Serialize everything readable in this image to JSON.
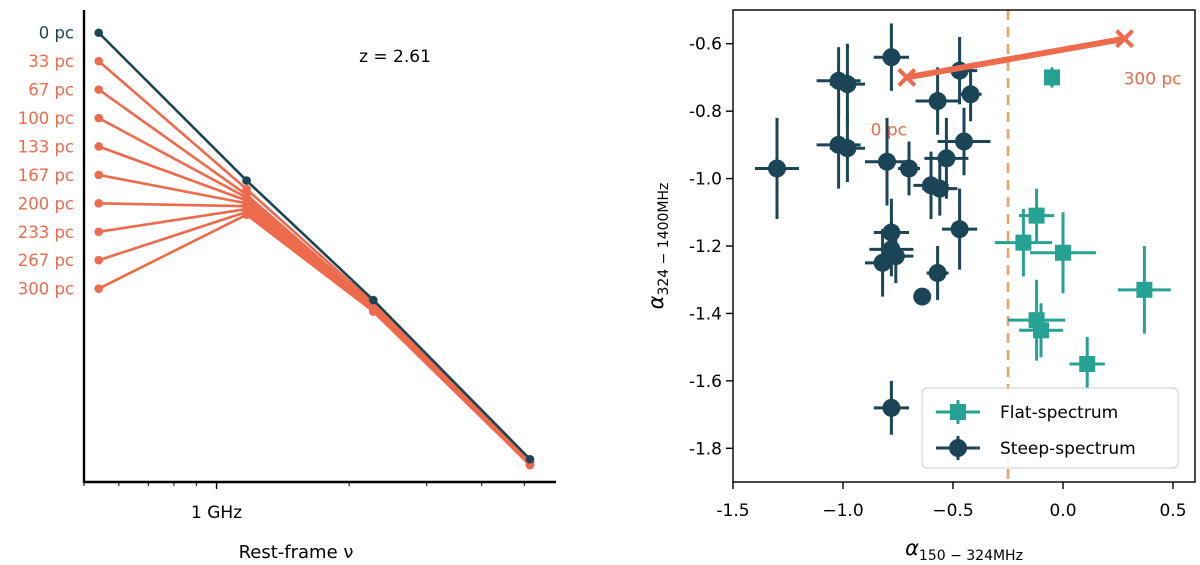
{
  "colors": {
    "dark": "#1b4556",
    "orange": "#ee6a4c",
    "teal": "#26a295",
    "vline": "#f0a060",
    "axis": "#000000"
  },
  "chart_data": [
    {
      "type": "line",
      "title": "",
      "xlabel": "Rest-frame ν",
      "ylabel": "",
      "xscale": "log",
      "x_ticks": [
        {
          "value": 1,
          "label": "1 GHz"
        }
      ],
      "annotation": "z = 2.61",
      "x": [
        0.54,
        1.17,
        2.27,
        5.15
      ],
      "series": [
        {
          "name": "0 pc",
          "color": "dark",
          "values": [
            0,
            -5.2,
            -9.4,
            -15.0
          ]
        },
        {
          "name": "33 pc",
          "color": "orange",
          "values": [
            -1.0,
            -5.5,
            -9.5,
            -15.0
          ]
        },
        {
          "name": "67 pc",
          "color": "orange",
          "values": [
            -2.0,
            -5.7,
            -9.6,
            -15.1
          ]
        },
        {
          "name": "100 pc",
          "color": "orange",
          "values": [
            -3.0,
            -5.8,
            -9.6,
            -15.1
          ]
        },
        {
          "name": "133 pc",
          "color": "orange",
          "values": [
            -4.0,
            -5.9,
            -9.7,
            -15.1
          ]
        },
        {
          "name": "167 pc",
          "color": "orange",
          "values": [
            -5.0,
            -6.0,
            -9.7,
            -15.1
          ]
        },
        {
          "name": "200 pc",
          "color": "orange",
          "values": [
            -6.0,
            -6.1,
            -9.7,
            -15.2
          ]
        },
        {
          "name": "233 pc",
          "color": "orange",
          "values": [
            -7.0,
            -6.2,
            -9.8,
            -15.2
          ]
        },
        {
          "name": "267 pc",
          "color": "orange",
          "values": [
            -8.0,
            -6.3,
            -9.8,
            -15.2
          ]
        },
        {
          "name": "300 pc",
          "color": "orange",
          "values": [
            -9.0,
            -6.4,
            -9.8,
            -15.2
          ]
        }
      ],
      "ylim": [
        -15.8,
        0.8
      ],
      "xlim": [
        0.5,
        5.9
      ],
      "grid": false,
      "legend": "none"
    },
    {
      "type": "scatter",
      "title": "",
      "xlabel": "α150 − 324MHz",
      "ylabel": "α324 − 1400MHz",
      "xlim": [
        -1.5,
        0.6
      ],
      "ylim": [
        -1.9,
        -0.5
      ],
      "x_ticks": [
        -1.5,
        -1.0,
        -0.5,
        0.0,
        0.5
      ],
      "y_ticks": [
        -0.6,
        -0.8,
        -1.0,
        -1.2,
        -1.4,
        -1.6,
        -1.8
      ],
      "x_tick_labels": [
        "-1.5",
        "−1.0",
        "−0.5",
        "0.0",
        "0.5"
      ],
      "y_tick_labels": [
        "-0.6",
        "-0.8",
        "-1.0",
        "-1.2",
        "-1.4",
        "-1.6",
        "-1.8"
      ],
      "vline": {
        "x": -0.25,
        "style": "dashed",
        "color": "vline"
      },
      "track": {
        "from": [
          -0.71,
          -0.7
        ],
        "to": [
          0.28,
          -0.585
        ],
        "color": "orange",
        "start_label": "0 pc",
        "end_label": "300 pc"
      },
      "series": [
        {
          "name": "Flat-spectrum",
          "marker": "square",
          "color": "teal",
          "points": [
            {
              "x": -0.05,
              "y": -0.7,
              "xerr": 0.03,
              "yerr": 0.03
            },
            {
              "x": -0.12,
              "y": -1.11,
              "xerr": 0.08,
              "yerr": 0.08
            },
            {
              "x": -0.18,
              "y": -1.19,
              "xerr": 0.13,
              "yerr": 0.1
            },
            {
              "x": 0.0,
              "y": -1.22,
              "xerr": 0.15,
              "yerr": 0.12
            },
            {
              "x": -0.12,
              "y": -1.42,
              "xerr": 0.13,
              "yerr": 0.12
            },
            {
              "x": -0.1,
              "y": -1.45,
              "xerr": 0.1,
              "yerr": 0.08
            },
            {
              "x": 0.37,
              "y": -1.33,
              "xerr": 0.12,
              "yerr": 0.13
            },
            {
              "x": 0.11,
              "y": -1.55,
              "xerr": 0.08,
              "yerr": 0.08
            }
          ]
        },
        {
          "name": "Steep-spectrum",
          "marker": "circle",
          "color": "dark",
          "points": [
            {
              "x": -0.78,
              "y": -0.64,
              "xerr": 0.08,
              "yerr": 0.1
            },
            {
              "x": -1.02,
              "y": -0.71,
              "xerr": 0.1,
              "yerr": 0.1
            },
            {
              "x": -0.98,
              "y": -0.72,
              "xerr": 0.08,
              "yerr": 0.12
            },
            {
              "x": -0.47,
              "y": -0.68,
              "xerr": 0.08,
              "yerr": 0.1
            },
            {
              "x": -0.42,
              "y": -0.75,
              "xerr": 0.05,
              "yerr": 0.08
            },
            {
              "x": -0.57,
              "y": -0.77,
              "xerr": 0.1,
              "yerr": 0.1
            },
            {
              "x": -1.02,
              "y": -0.9,
              "xerr": 0.1,
              "yerr": 0.13
            },
            {
              "x": -0.98,
              "y": -0.91,
              "xerr": 0.08,
              "yerr": 0.1
            },
            {
              "x": -0.45,
              "y": -0.89,
              "xerr": 0.12,
              "yerr": 0.1
            },
            {
              "x": -0.53,
              "y": -0.94,
              "xerr": 0.1,
              "yerr": 0.12
            },
            {
              "x": -0.8,
              "y": -0.95,
              "xerr": 0.1,
              "yerr": 0.13
            },
            {
              "x": -1.3,
              "y": -0.97,
              "xerr": 0.1,
              "yerr": 0.15
            },
            {
              "x": -0.7,
              "y": -0.97,
              "xerr": 0.05,
              "yerr": 0.08
            },
            {
              "x": -0.6,
              "y": -1.02,
              "xerr": 0.08,
              "yerr": 0.1
            },
            {
              "x": -0.56,
              "y": -1.03,
              "xerr": 0.08,
              "yerr": 0.08
            },
            {
              "x": -0.47,
              "y": -1.15,
              "xerr": 0.08,
              "yerr": 0.12
            },
            {
              "x": -0.78,
              "y": -1.16,
              "xerr": 0.08,
              "yerr": 0.1
            },
            {
              "x": -0.78,
              "y": -1.21,
              "xerr": 0.1,
              "yerr": 0.08
            },
            {
              "x": -0.76,
              "y": -1.23,
              "xerr": 0.08,
              "yerr": 0.08
            },
            {
              "x": -0.82,
              "y": -1.25,
              "xerr": 0.08,
              "yerr": 0.1
            },
            {
              "x": -0.57,
              "y": -1.28,
              "xerr": 0.05,
              "yerr": 0.08
            },
            {
              "x": -0.64,
              "y": -1.35,
              "xerr": 0.0,
              "yerr": 0.0
            },
            {
              "x": -0.78,
              "y": -1.68,
              "xerr": 0.08,
              "yerr": 0.08
            }
          ]
        }
      ],
      "legend": "lower-right",
      "grid": false
    }
  ]
}
